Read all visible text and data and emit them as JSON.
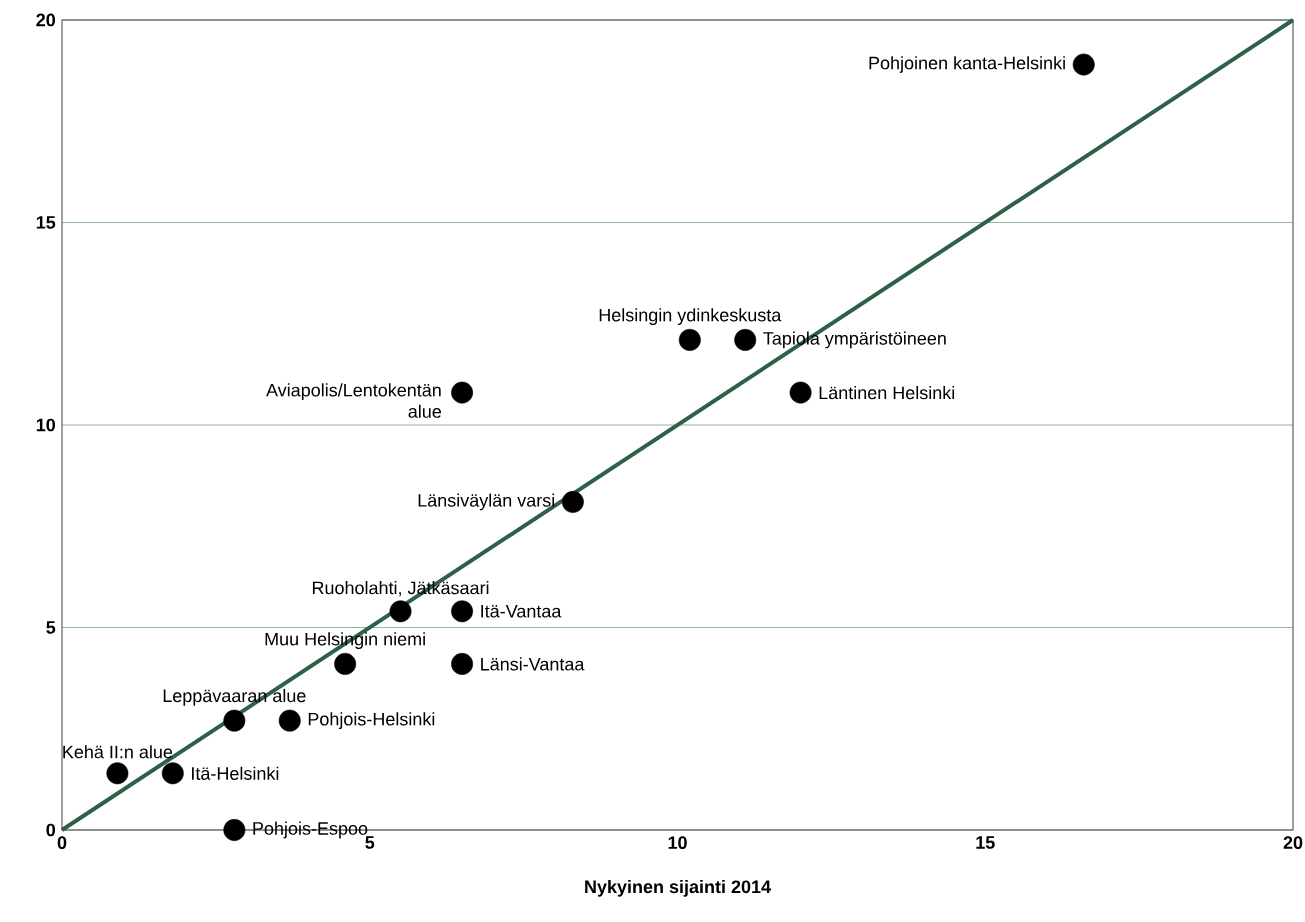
{
  "chart_data": {
    "type": "scatter",
    "xlabel": "Nykyinen sijainti 2014",
    "xlim": [
      0,
      20
    ],
    "ylim": [
      0,
      20
    ],
    "xticks": [
      0,
      5,
      10,
      15,
      20
    ],
    "yticks": [
      0,
      5,
      10,
      15,
      20
    ],
    "grid": "y",
    "series": [
      {
        "marker": "circle",
        "color": "#000000",
        "x": [
          16.6,
          10.2,
          11.1,
          12.0,
          6.5,
          8.3,
          5.5,
          6.5,
          4.6,
          6.5,
          2.8,
          3.7,
          0.9,
          1.8,
          2.8
        ],
        "values": [
          18.9,
          12.1,
          12.1,
          10.8,
          10.8,
          8.1,
          5.4,
          5.4,
          4.1,
          4.1,
          2.7,
          2.7,
          1.4,
          1.4,
          0
        ]
      },
      {
        "type": "line",
        "marker": "none",
        "color": "#2e6047",
        "x": [
          0,
          20
        ],
        "values": [
          0,
          20
        ]
      }
    ],
    "annotations": [
      {
        "text": "Pohjoinen kanta-Helsinki",
        "x": 16.6,
        "y": 18.9
      },
      {
        "text": "Helsingin ydinkeskusta",
        "x": 10.2,
        "y": 12.1
      },
      {
        "text": "Tapiola ympäristöineen",
        "x": 11.1,
        "y": 12.1
      },
      {
        "text": "Läntinen Helsinki",
        "x": 12.0,
        "y": 10.8
      },
      {
        "text": "Aviapolis/Lentokentän alue",
        "x": 6.5,
        "y": 10.8
      },
      {
        "text": "Länsiväylän varsi",
        "x": 8.3,
        "y": 8.1
      },
      {
        "text": "Ruoholahti,  Jätkäsaari",
        "x": 5.5,
        "y": 5.4
      },
      {
        "text": "Itä-Vantaa",
        "x": 6.5,
        "y": 5.4
      },
      {
        "text": "Muu Helsingin niemi",
        "x": 4.6,
        "y": 4.1
      },
      {
        "text": "Länsi-Vantaa",
        "x": 6.5,
        "y": 4.1
      },
      {
        "text": "Leppävaaran alue",
        "x": 2.8,
        "y": 2.7
      },
      {
        "text": "Pohjois-Helsinki",
        "x": 3.7,
        "y": 2.7
      },
      {
        "text": "Kehä II:n alue",
        "x": 0.9,
        "y": 1.4
      },
      {
        "text": "Itä-Helsinki",
        "x": 1.8,
        "y": 1.4
      },
      {
        "text": "Pohjois-Espoo",
        "x": 2.8,
        "y": 0
      }
    ]
  }
}
